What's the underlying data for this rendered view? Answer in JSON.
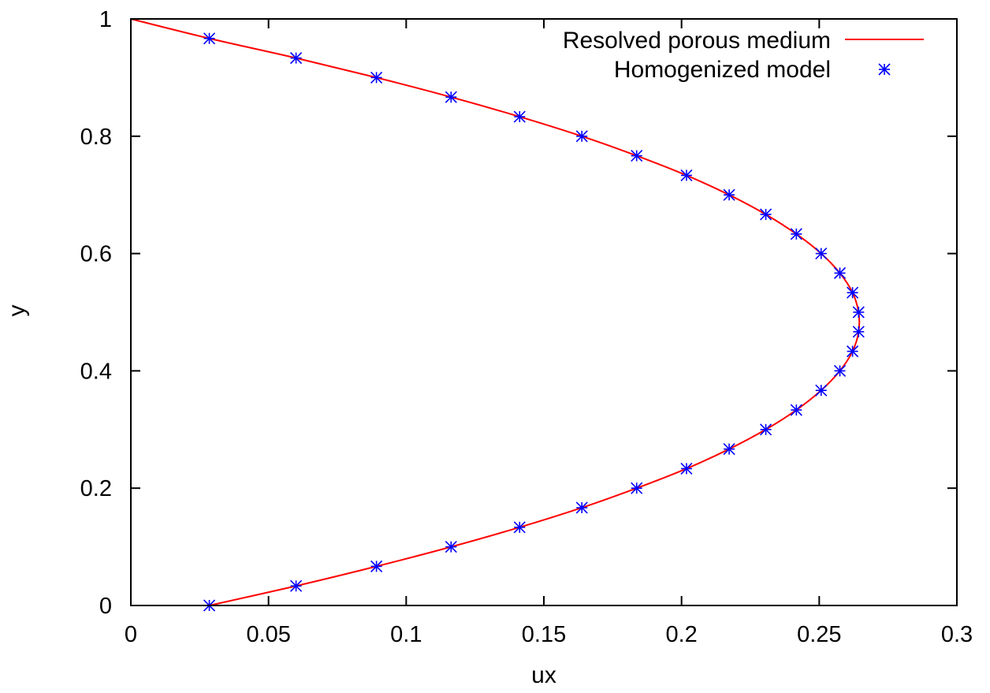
{
  "chart_data": {
    "type": "line",
    "title": "",
    "xlabel": "ux",
    "ylabel": "y",
    "xlim": [
      0,
      0.3
    ],
    "ylim": [
      0,
      1
    ],
    "xticks": [
      "0",
      "0.05",
      "0.1",
      "0.15",
      "0.2",
      "0.25",
      "0.3"
    ],
    "yticks": [
      "0",
      "0.2",
      "0.4",
      "0.6",
      "0.8",
      "1"
    ],
    "grid": false,
    "legend_position": "top-right",
    "colors": {
      "line": "#ff0000",
      "markers": "#0000ff",
      "axes": "#000000"
    },
    "series": [
      {
        "name": "Resolved porous medium",
        "style": "line",
        "x": [
          0.0285,
          0.06,
          0.0892,
          0.1163,
          0.1412,
          0.1638,
          0.1837,
          0.2018,
          0.2173,
          0.2306,
          0.2417,
          0.2507,
          0.2575,
          0.2621,
          0.2643,
          0.2643,
          0.2621,
          0.2575,
          0.2507,
          0.2417,
          0.2306,
          0.2173,
          0.2018,
          0.1837,
          0.1638,
          0.1412,
          0.1163,
          0.0892,
          0.06,
          0.0285,
          0.0
        ],
        "y": [
          0.0,
          0.0333,
          0.0667,
          0.1,
          0.1333,
          0.1667,
          0.2,
          0.2333,
          0.2667,
          0.3,
          0.3333,
          0.3667,
          0.4,
          0.4333,
          0.4667,
          0.5,
          0.5333,
          0.5667,
          0.6,
          0.6333,
          0.6667,
          0.7,
          0.7333,
          0.7667,
          0.8,
          0.8333,
          0.8667,
          0.9,
          0.9333,
          0.9667,
          1.0
        ]
      },
      {
        "name": "Homogenized model",
        "style": "markers",
        "marker": "asterisk",
        "x": [
          0.0285,
          0.06,
          0.0892,
          0.1163,
          0.1412,
          0.1638,
          0.1837,
          0.2018,
          0.2173,
          0.2306,
          0.2417,
          0.2507,
          0.2575,
          0.2621,
          0.2643,
          0.2643,
          0.2621,
          0.2575,
          0.2507,
          0.2417,
          0.2306,
          0.2173,
          0.2018,
          0.1837,
          0.1638,
          0.1412,
          0.1163,
          0.0892,
          0.06,
          0.0285
        ],
        "y": [
          0.0,
          0.0333,
          0.0667,
          0.1,
          0.1333,
          0.1667,
          0.2,
          0.2333,
          0.2667,
          0.3,
          0.3333,
          0.3667,
          0.4,
          0.4333,
          0.4667,
          0.5,
          0.5333,
          0.5667,
          0.6,
          0.6333,
          0.6667,
          0.7,
          0.7333,
          0.7667,
          0.8,
          0.8333,
          0.8667,
          0.9,
          0.9333,
          0.9667
        ]
      }
    ]
  }
}
